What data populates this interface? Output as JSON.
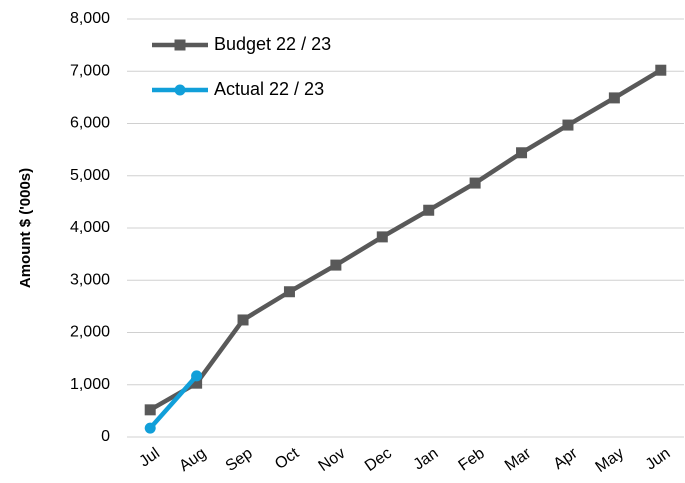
{
  "chart_data": {
    "type": "line",
    "y_label": "Amount  $ ('000s)",
    "categories": [
      "Jul",
      "Aug",
      "Sep",
      "Oct",
      "Nov",
      "Dec",
      "Jan",
      "Feb",
      "Mar",
      "Apr",
      "May",
      "Jun"
    ],
    "series": [
      {
        "name": "Budget 22 / 23",
        "color": "#595959",
        "marker": "square",
        "values": [
          520,
          1030,
          2240,
          2780,
          3290,
          3830,
          4340,
          4860,
          5440,
          5970,
          6490,
          7020
        ]
      },
      {
        "name": "Actual 22 / 23",
        "color": "#119fd9",
        "marker": "circle",
        "values": [
          170,
          1170,
          null,
          null,
          null,
          null,
          null,
          null,
          null,
          null,
          null,
          null
        ]
      }
    ],
    "ylim": [
      0,
      8000
    ],
    "yticks": [
      0,
      {
        "value": 1000,
        "label": "1,000"
      },
      {
        "value": 2000,
        "label": "2,000"
      },
      {
        "value": 3000,
        "label": "3,000"
      },
      {
        "value": 4000,
        "label": "4,000"
      },
      {
        "value": 5000,
        "label": "5,000"
      },
      {
        "value": 6000,
        "label": "6,000"
      },
      {
        "value": 7000,
        "label": "7,000"
      },
      {
        "value": 8000,
        "label": "8,000"
      }
    ],
    "grid": true,
    "legend": "top-left"
  }
}
